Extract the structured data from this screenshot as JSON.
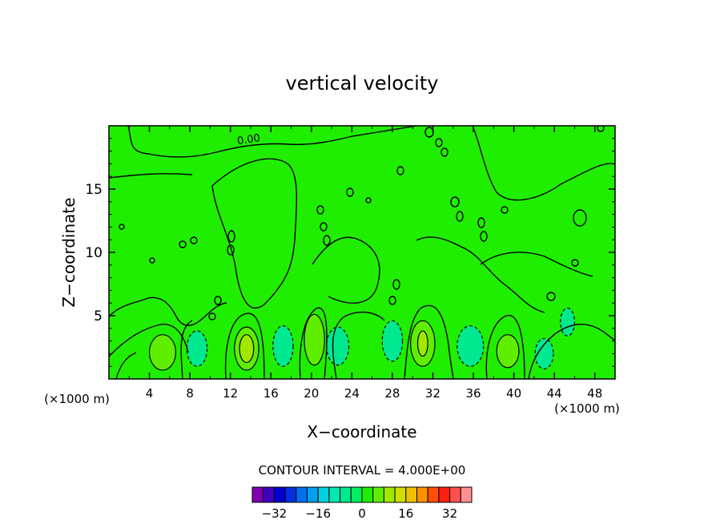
{
  "chart_data": {
    "type": "heatmap",
    "title": "vertical velocity",
    "xlabel": "X−coordinate",
    "ylabel": "Z−coordinate",
    "x_unit": "(×1000 m)",
    "x_unit_right": "(×1000 m)",
    "xlim": [
      0,
      50
    ],
    "ylim": [
      0,
      20
    ],
    "x_ticks": [
      4,
      8,
      12,
      16,
      20,
      24,
      28,
      32,
      36,
      40,
      44,
      48
    ],
    "y_ticks": [
      5,
      10,
      15
    ],
    "contour_interval_text": "CONTOUR INTERVAL = 4.000E+00",
    "contour_label": "0.00",
    "colorbar": {
      "tick_labels": [
        "−32",
        "−16",
        "0",
        "16",
        "32"
      ],
      "tick_values": [
        -32,
        -16,
        0,
        16,
        32
      ],
      "levels": [
        -40,
        -36,
        -32,
        -28,
        -24,
        -20,
        -16,
        -12,
        -8,
        -4,
        0,
        4,
        8,
        12,
        16,
        20,
        24,
        28,
        32,
        36,
        40
      ],
      "colors": [
        "#8000b0",
        "#4000c0",
        "#0000d0",
        "#0030e0",
        "#0070f0",
        "#00a0f0",
        "#00d0e0",
        "#00e8b0",
        "#00e890",
        "#00ee60",
        "#20ee00",
        "#60ee00",
        "#a0e800",
        "#d0e000",
        "#f0c000",
        "#ff9000",
        "#ff5000",
        "#ff2010",
        "#ff5050",
        "#ff9090"
      ]
    },
    "background_color": "#20ee00",
    "regions": [
      {
        "kind": "updraft",
        "x": 5.3,
        "z": 2.1,
        "rx": 1.3,
        "rz": 1.4,
        "value": 6
      },
      {
        "kind": "downdraft",
        "x": 8.7,
        "z": 2.4,
        "rx": 1.0,
        "rz": 1.4,
        "value": -6
      },
      {
        "kind": "updraft",
        "x": 13.6,
        "z": 2.4,
        "rx": 1.2,
        "rz": 1.7,
        "value": 6
      },
      {
        "kind": "updraft",
        "x": 13.6,
        "z": 2.4,
        "rx": 0.7,
        "rz": 1.1,
        "value": 10
      },
      {
        "kind": "downdraft",
        "x": 17.2,
        "z": 2.6,
        "rx": 1.0,
        "rz": 1.6,
        "value": -6
      },
      {
        "kind": "updraft",
        "x": 20.3,
        "z": 3.1,
        "rx": 1.0,
        "rz": 2.0,
        "value": 6
      },
      {
        "kind": "downdraft",
        "x": 22.6,
        "z": 2.6,
        "rx": 1.1,
        "rz": 1.5,
        "value": -6
      },
      {
        "kind": "downdraft",
        "x": 28.0,
        "z": 3.0,
        "rx": 1.0,
        "rz": 1.6,
        "value": -6
      },
      {
        "kind": "updraft",
        "x": 31.0,
        "z": 2.8,
        "rx": 1.2,
        "rz": 1.8,
        "value": 6
      },
      {
        "kind": "updraft",
        "x": 31.0,
        "z": 2.8,
        "rx": 0.5,
        "rz": 1.0,
        "value": 10
      },
      {
        "kind": "downdraft",
        "x": 35.7,
        "z": 2.6,
        "rx": 1.3,
        "rz": 1.6,
        "value": -6
      },
      {
        "kind": "updraft",
        "x": 39.4,
        "z": 2.2,
        "rx": 1.1,
        "rz": 1.3,
        "value": 6
      },
      {
        "kind": "downdraft",
        "x": 43.0,
        "z": 2.0,
        "rx": 0.9,
        "rz": 1.2,
        "value": -6
      },
      {
        "kind": "downdraft",
        "x": 45.3,
        "z": 4.5,
        "rx": 0.7,
        "rz": 1.1,
        "value": -6
      }
    ]
  }
}
